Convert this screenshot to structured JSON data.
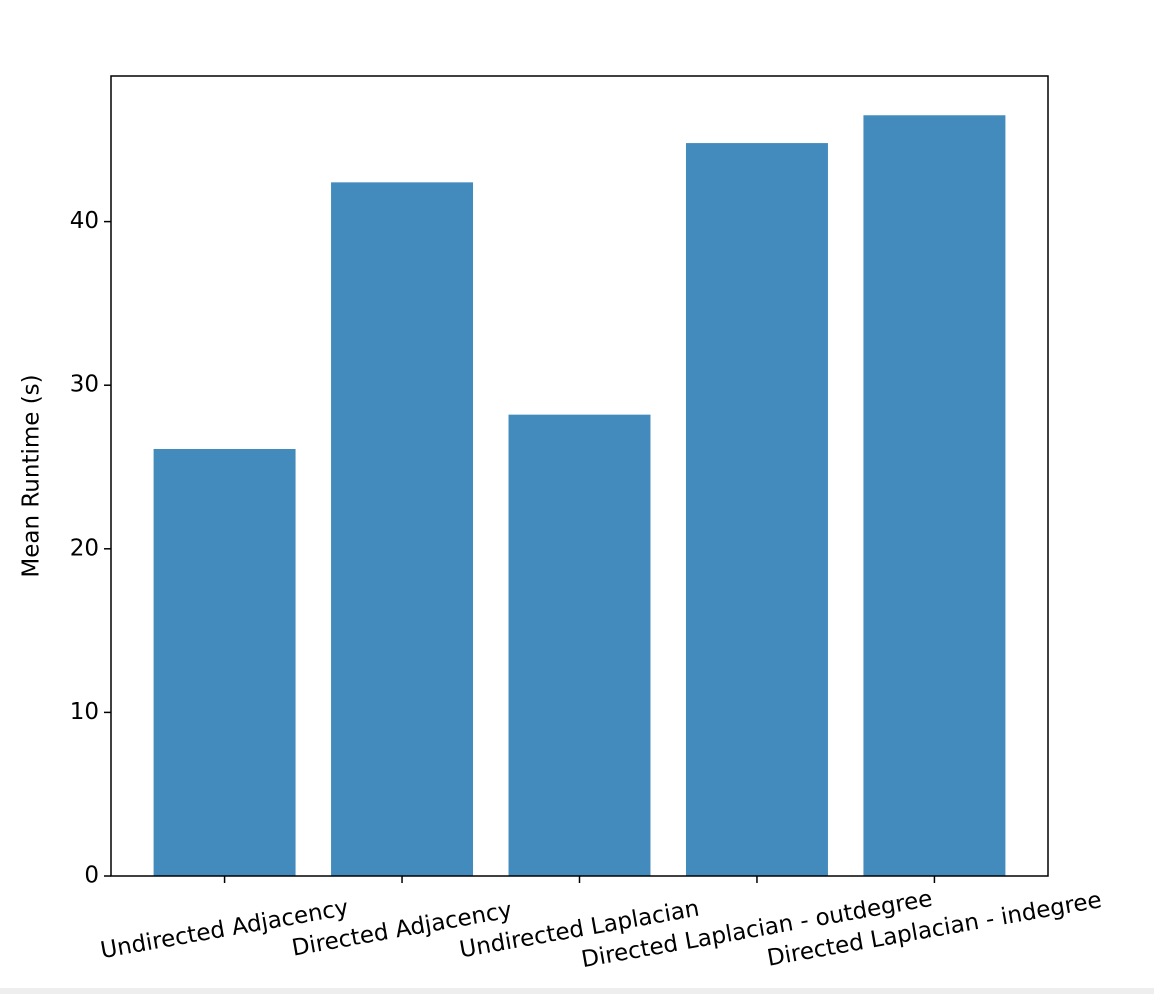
{
  "chart_data": {
    "type": "bar",
    "ylabel": "Mean Runtime (s)",
    "categories": [
      "Undirected Adjacency",
      "Directed Adjacency",
      "Undirected Laplacian",
      "Directed Laplacian - outdegree",
      "Directed Laplacian - indegree"
    ],
    "values": [
      26.1,
      42.4,
      28.2,
      44.8,
      46.5
    ],
    "color": "#438bbd",
    "ylim": [
      0,
      48.9
    ],
    "yticks": [
      0,
      10,
      20,
      30,
      40
    ],
    "grid": false
  }
}
